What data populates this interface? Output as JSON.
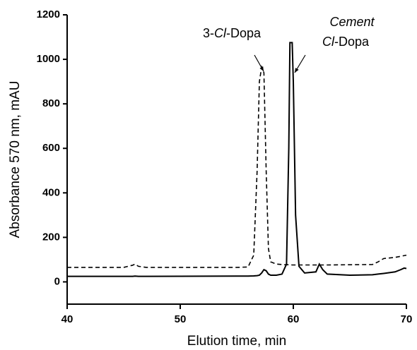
{
  "chart_data": {
    "type": "line",
    "x_label": "Elution time, min",
    "y_label": "Absorbance 570 nm, mAU",
    "xlim": [
      40,
      70
    ],
    "xticks": [
      40,
      50,
      60,
      70
    ],
    "ylim": [
      -100,
      1200
    ],
    "yticks": [
      0,
      200,
      400,
      600,
      800,
      1000,
      1200
    ],
    "x": [
      40,
      45,
      45.8,
      46,
      46.3,
      47,
      55,
      56,
      56.5,
      56.8,
      57,
      57.2,
      57.4,
      57.6,
      57.8,
      58,
      58.5,
      59,
      59.4,
      59.6,
      59.7,
      59.9,
      60,
      60.2,
      60.5,
      61,
      62,
      62.3,
      62.6,
      63,
      65,
      67,
      67.5,
      68,
      69,
      69.5,
      69.8,
      70
    ],
    "series": [
      {
        "color": "#000000",
        "dash": true,
        "values": [
          65,
          65,
          75,
          80,
          70,
          65,
          65,
          67,
          120,
          500,
          900,
          965,
          940,
          500,
          150,
          90,
          80,
          78,
          77,
          77,
          77,
          76,
          76,
          76,
          76,
          76,
          76,
          76,
          76,
          76,
          77,
          78,
          90,
          105,
          110,
          115,
          118,
          120
        ]
      },
      {
        "color": "#000000",
        "dash": false,
        "values": [
          25,
          25,
          25,
          26,
          25,
          25,
          26,
          26,
          27,
          28,
          30,
          40,
          55,
          50,
          35,
          30,
          30,
          35,
          80,
          600,
          1075,
          1075,
          900,
          300,
          70,
          40,
          45,
          80,
          55,
          35,
          30,
          32,
          35,
          38,
          45,
          55,
          62,
          60
        ]
      }
    ],
    "annotations": [
      {
        "parts": [
          {
            "text": "3-",
            "italic": false
          },
          {
            "text": "Cl",
            "italic": true
          },
          {
            "text": "-Dopa",
            "italic": false
          }
        ]
      },
      {
        "parts": [
          {
            "text": "Cement",
            "italic": true
          }
        ]
      },
      {
        "parts": [
          {
            "text": "Cl",
            "italic": true
          },
          {
            "text": "-Dopa",
            "italic": false
          }
        ]
      }
    ]
  }
}
